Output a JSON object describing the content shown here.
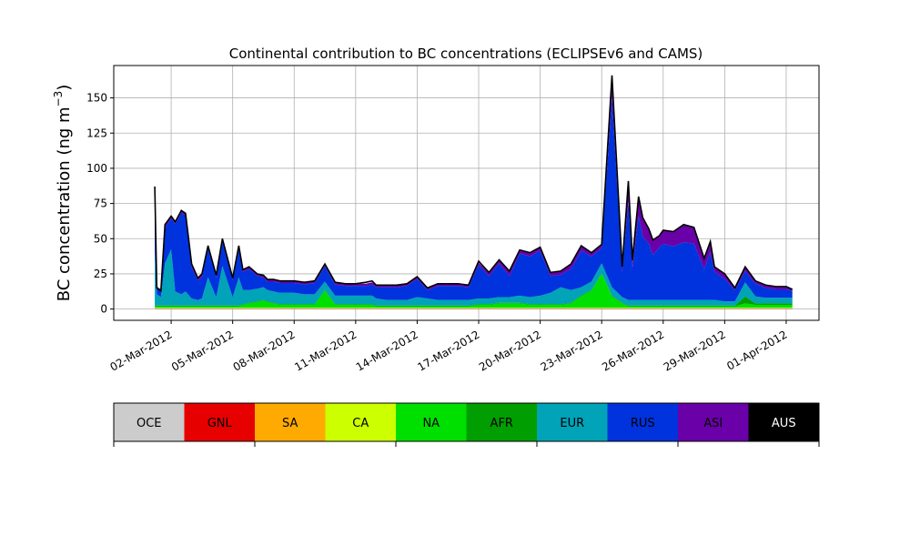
{
  "chart_data": {
    "type": "area",
    "stacked": true,
    "title": "Continental contribution to BC concentrations (ECLIPSEv6 and CAMS)",
    "ylabel": "BC concentration (ng m",
    "ylabel_sup": "−3",
    "ylabel_close": ")",
    "ylim": [
      -8,
      173
    ],
    "yticks": [
      0,
      25,
      50,
      75,
      100,
      125,
      150
    ],
    "xticks": [
      {
        "day": 2,
        "label": "02-Mar-2012"
      },
      {
        "day": 5,
        "label": "05-Mar-2012"
      },
      {
        "day": 8,
        "label": "08-Mar-2012"
      },
      {
        "day": 11,
        "label": "11-Mar-2012"
      },
      {
        "day": 14,
        "label": "14-Mar-2012"
      },
      {
        "day": 17,
        "label": "17-Mar-2012"
      },
      {
        "day": 20,
        "label": "20-Mar-2012"
      },
      {
        "day": 23,
        "label": "23-Mar-2012"
      },
      {
        "day": 26,
        "label": "26-Mar-2012"
      },
      {
        "day": 29,
        "label": "29-Mar-2012"
      },
      {
        "day": 32,
        "label": "01-Apr-2012"
      }
    ],
    "xlim": [
      -0.8,
      33.6
    ],
    "grid": true,
    "x": [
      1.2,
      1.3,
      1.5,
      1.7,
      2.0,
      2.2,
      2.5,
      2.7,
      3.0,
      3.3,
      3.5,
      3.8,
      4.2,
      4.5,
      5.0,
      5.3,
      5.5,
      5.8,
      6.2,
      6.5,
      6.7,
      7.0,
      7.3,
      7.6,
      8.0,
      8.5,
      9.0,
      9.5,
      10.0,
      10.5,
      11.0,
      11.5,
      11.8,
      12.0,
      12.5,
      13.0,
      13.5,
      14.0,
      14.5,
      15.0,
      15.5,
      16.0,
      16.5,
      17.0,
      17.5,
      18.0,
      18.5,
      19.0,
      19.5,
      20.0,
      20.5,
      21.0,
      21.5,
      22.0,
      22.5,
      23.0,
      23.5,
      24.0,
      24.3,
      24.5,
      24.8,
      25.0,
      25.3,
      25.5,
      25.8,
      26.0,
      26.5,
      27.0,
      27.5,
      28.0,
      28.3,
      28.5,
      29.0,
      29.5,
      30.0,
      30.5,
      31.0,
      31.5,
      32.0,
      32.3
    ],
    "total": [
      87,
      15,
      13,
      60,
      66,
      62,
      70,
      68,
      32,
      22,
      25,
      45,
      24,
      50,
      22,
      45,
      28,
      30,
      25,
      24,
      21,
      21,
      20,
      20,
      20,
      19,
      20,
      32,
      19,
      18,
      18,
      19,
      20,
      17,
      17,
      17,
      18,
      23,
      15,
      18,
      18,
      18,
      17,
      34,
      26,
      35,
      27,
      42,
      40,
      44,
      26,
      27,
      32,
      45,
      40,
      46,
      166,
      30,
      91,
      35,
      80,
      65,
      57,
      49,
      52,
      56,
      55,
      60,
      58,
      36,
      48,
      30,
      25,
      15,
      30,
      20,
      17,
      16,
      16,
      14
    ],
    "series": [
      {
        "name": "OCE",
        "color": "#cccccc",
        "values": [
          0.3,
          0.3,
          0.3,
          0.3,
          0.3,
          0.3,
          0.3,
          0.3,
          0.3,
          0.3,
          0.3,
          0.3,
          0.3,
          0.3,
          0.3,
          0.3,
          0.3,
          0.3,
          0.3,
          0.3,
          0.3,
          0.3,
          0.3,
          0.3,
          0.3,
          0.3,
          0.3,
          0.3,
          0.3,
          0.3,
          0.3,
          0.3,
          0.3,
          0.3,
          0.3,
          0.3,
          0.3,
          0.3,
          0.3,
          0.3,
          0.3,
          0.3,
          0.3,
          0.3,
          0.3,
          0.3,
          0.3,
          0.3,
          0.3,
          0.3,
          0.3,
          0.3,
          0.3,
          0.3,
          0.3,
          0.3,
          0.3,
          0.3,
          0.3,
          0.3,
          0.3,
          0.3,
          0.3,
          0.3,
          0.3,
          0.3,
          0.3,
          0.3,
          0.3,
          0.3,
          0.3,
          0.3,
          0.3,
          0.3,
          0.3,
          0.3,
          0.3,
          0.3,
          0.3,
          0.3
        ]
      },
      {
        "name": "GNL",
        "color": "#e60000",
        "values": [
          0.1,
          0.1,
          0.1,
          0.1,
          0.1,
          0.1,
          0.1,
          0.1,
          0.1,
          0.1,
          0.1,
          0.1,
          0.1,
          0.1,
          0.1,
          0.1,
          0.1,
          0.1,
          0.1,
          0.1,
          0.1,
          0.1,
          0.1,
          0.1,
          0.1,
          0.1,
          0.1,
          0.1,
          0.1,
          0.1,
          0.1,
          0.1,
          0.1,
          0.1,
          0.1,
          0.1,
          0.1,
          0.1,
          0.1,
          0.1,
          0.1,
          0.1,
          0.1,
          0.1,
          0.1,
          0.1,
          0.1,
          0.1,
          0.1,
          0.1,
          0.1,
          0.1,
          0.1,
          0.1,
          0.1,
          0.1,
          0.1,
          0.1,
          0.1,
          0.1,
          0.1,
          0.1,
          0.1,
          0.1,
          0.1,
          0.1,
          0.1,
          0.1,
          0.1,
          0.1,
          0.1,
          0.1,
          0.1,
          0.1,
          0.1,
          0.1,
          0.1,
          0.1,
          0.1,
          0.1
        ]
      },
      {
        "name": "SA",
        "color": "#ffaa00",
        "values": [
          0.1,
          0.1,
          0.1,
          0.1,
          0.1,
          0.1,
          0.1,
          0.1,
          0.1,
          0.1,
          0.1,
          0.1,
          0.1,
          0.1,
          0.1,
          0.1,
          0.1,
          0.1,
          0.1,
          0.1,
          0.1,
          0.1,
          0.1,
          0.1,
          0.1,
          0.1,
          0.1,
          0.1,
          0.1,
          0.1,
          0.1,
          0.1,
          0.1,
          0.1,
          0.1,
          0.1,
          0.1,
          0.1,
          0.1,
          0.1,
          0.1,
          0.1,
          0.1,
          0.1,
          0.1,
          0.1,
          0.1,
          0.1,
          0.1,
          0.1,
          0.1,
          0.1,
          0.1,
          0.1,
          0.1,
          0.1,
          0.1,
          0.1,
          0.1,
          0.1,
          0.1,
          0.1,
          0.1,
          0.1,
          0.1,
          0.1,
          0.1,
          0.1,
          0.1,
          0.1,
          0.1,
          0.1,
          0.1,
          0.1,
          0.1,
          0.1,
          0.1,
          0.1,
          0.1,
          0.1
        ]
      },
      {
        "name": "CA",
        "color": "#ccff00",
        "values": [
          0.5,
          0.5,
          0.5,
          0.5,
          0.5,
          0.5,
          0.5,
          0.5,
          0.5,
          0.5,
          0.5,
          0.5,
          0.5,
          0.5,
          0.5,
          0.5,
          0.5,
          0.5,
          0.5,
          0.5,
          0.5,
          0.5,
          0.5,
          0.5,
          0.5,
          0.5,
          0.5,
          0.5,
          0.5,
          0.5,
          0.5,
          0.5,
          0.5,
          0.5,
          0.5,
          0.5,
          0.5,
          0.5,
          0.5,
          0.5,
          0.5,
          0.5,
          0.5,
          0.5,
          0.5,
          0.5,
          0.5,
          0.5,
          0.5,
          0.5,
          0.5,
          0.5,
          0.5,
          0.5,
          0.5,
          0.5,
          0.5,
          0.5,
          0.5,
          0.5,
          0.5,
          0.5,
          0.5,
          0.5,
          0.5,
          0.5,
          0.5,
          0.5,
          0.5,
          0.5,
          0.5,
          0.5,
          0.5,
          0.5,
          0.5,
          0.5,
          0.5,
          0.5,
          0.5,
          0.5
        ]
      },
      {
        "name": "NA",
        "color": "#00e000",
        "values": [
          1,
          1,
          1,
          1,
          1,
          1,
          1,
          1,
          1,
          1,
          1,
          1,
          1,
          1,
          1,
          1,
          2,
          3,
          4,
          5,
          4,
          3,
          2,
          2,
          2,
          2,
          2,
          12,
          2,
          2,
          2,
          2,
          2,
          1,
          1,
          1,
          1,
          1,
          1,
          1,
          1,
          1,
          1,
          2,
          2,
          3,
          3,
          3,
          2,
          2,
          2,
          2,
          3,
          8,
          12,
          24,
          8,
          3,
          1,
          1,
          1,
          1,
          1,
          1,
          1,
          1,
          1,
          1,
          1,
          1,
          1,
          1,
          1,
          1,
          3,
          2,
          2,
          2,
          2,
          2
        ]
      },
      {
        "name": "AFR",
        "color": "#009e00",
        "values": [
          0.5,
          0.5,
          0.5,
          0.5,
          0.5,
          0.5,
          0.5,
          0.5,
          0.5,
          0.5,
          0.5,
          0.5,
          0.5,
          0.5,
          0.5,
          0.5,
          0.5,
          0.5,
          0.5,
          0.5,
          0.5,
          0.5,
          0.5,
          0.5,
          0.5,
          0.5,
          0.5,
          0.5,
          0.5,
          0.5,
          0.5,
          0.5,
          0.5,
          0.5,
          0.5,
          0.5,
          0.5,
          0.5,
          0.5,
          0.5,
          0.5,
          0.5,
          0.5,
          0.5,
          0.5,
          0.5,
          0.5,
          0.5,
          0.5,
          0.5,
          0.5,
          0.5,
          0.5,
          0.5,
          0.5,
          0.5,
          0.5,
          0.5,
          0.5,
          0.5,
          0.5,
          0.5,
          0.5,
          0.5,
          0.5,
          0.5,
          0.5,
          0.5,
          0.5,
          0.5,
          0.5,
          0.5,
          0.5,
          0.5,
          5,
          1,
          1,
          1,
          1,
          1
        ]
      },
      {
        "name": "EUR",
        "color": "#00a3b8",
        "values": [
          38,
          8,
          6,
          30,
          40,
          10,
          8,
          10,
          5,
          4,
          5,
          20,
          6,
          28,
          6,
          20,
          10,
          9,
          9,
          9,
          8,
          8,
          8,
          8,
          8,
          7,
          7,
          6,
          6,
          6,
          6,
          6,
          6,
          5,
          4,
          4,
          4,
          6,
          5,
          4,
          4,
          4,
          4,
          4,
          4,
          4,
          4,
          5,
          5,
          6,
          8,
          12,
          9,
          6,
          6,
          7,
          6,
          4,
          4,
          4,
          4,
          4,
          4,
          4,
          4,
          4,
          4,
          4,
          4,
          4,
          4,
          4,
          3,
          3,
          10,
          5,
          4,
          4,
          4,
          4
        ]
      },
      {
        "name": "RUS",
        "color": "#0033dd",
        "values": [
          43,
          5,
          5,
          25,
          22,
          48,
          58,
          54,
          22,
          14,
          15,
          21,
          14,
          18,
          12,
          20,
          13,
          15,
          9,
          7,
          6,
          7,
          7,
          7,
          7,
          7,
          8,
          11,
          8,
          7,
          7,
          7,
          8,
          8,
          9,
          9,
          10,
          13,
          6,
          10,
          10,
          10,
          9,
          24,
          16,
          24,
          15,
          30,
          29,
          32,
          12,
          9,
          15,
          26,
          18,
          11,
          135,
          18,
          70,
          23,
          60,
          45,
          40,
          32,
          37,
          40,
          38,
          41,
          40,
          22,
          34,
          20,
          16,
          8,
          8,
          9,
          7,
          6,
          6,
          5
        ]
      },
      {
        "name": "ASI",
        "color": "#6a00a8",
        "values": [
          2.5,
          0.5,
          0.5,
          3,
          2,
          2,
          2,
          2,
          3,
          2,
          3,
          2,
          2,
          2,
          2,
          3,
          1.5,
          2,
          2,
          2,
          1.5,
          1.5,
          1.5,
          1.5,
          1.5,
          1.5,
          1.5,
          1.5,
          1.5,
          1.5,
          1.5,
          1.5,
          1.5,
          1.5,
          1.5,
          1.5,
          1.5,
          1.5,
          1.5,
          1.5,
          1.5,
          1.5,
          1.5,
          1.5,
          2,
          2,
          3,
          2.5,
          2.5,
          2.5,
          2.5,
          2.5,
          3,
          3,
          2.5,
          2.5,
          15,
          3.5,
          15,
          5.5,
          13,
          13,
          10,
          10,
          8.5,
          9.5,
          10,
          12,
          11.5,
          7.5,
          7,
          3.5,
          3.5,
          1.5,
          2.5,
          1.5,
          1.5,
          1.5,
          1.5,
          1.5
        ]
      },
      {
        "name": "AUS",
        "color": "#000000",
        "values": [
          0,
          0,
          0,
          0,
          0,
          0,
          0,
          0,
          0,
          0,
          0,
          0,
          0,
          0,
          0,
          0,
          0,
          0,
          0,
          0,
          0,
          0,
          0,
          0,
          0,
          0,
          0,
          0,
          0,
          0,
          0,
          0,
          0,
          0,
          0,
          0,
          0,
          0,
          0,
          0,
          0,
          0,
          0,
          0,
          0,
          0,
          0,
          0,
          0,
          0,
          0,
          0,
          0,
          0,
          0,
          0,
          0,
          0,
          0,
          0,
          0,
          0,
          0,
          0,
          0,
          0,
          0,
          0,
          0,
          0,
          0,
          0,
          0,
          0,
          0,
          0,
          0,
          0,
          0,
          0
        ]
      }
    ]
  }
}
